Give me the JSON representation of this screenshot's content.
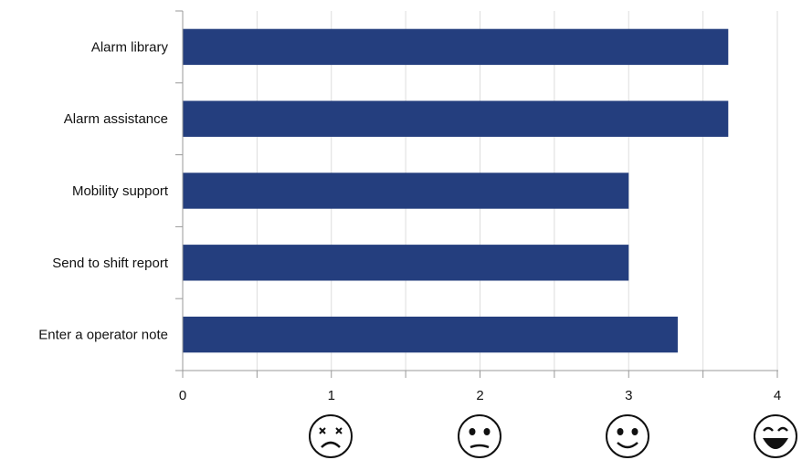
{
  "chart_data": {
    "type": "bar",
    "orientation": "horizontal",
    "categories": [
      "Alarm library",
      "Alarm assistance",
      "Mobility support",
      "Send to shift report",
      "Enter a operator note"
    ],
    "values": [
      3.67,
      3.67,
      3.0,
      3.0,
      3.33
    ],
    "xlim": [
      0,
      4
    ],
    "xticks": [
      "0",
      "1",
      "2",
      "3",
      "4"
    ],
    "title": "",
    "xlabel": "",
    "ylabel": "",
    "grid": "vertical-minor",
    "bar_color": "#243e7e",
    "axis_icons": [
      "dizzy-face-icon",
      "frowning-face-icon",
      "smiling-face-icon",
      "grinning-face-icon"
    ]
  }
}
